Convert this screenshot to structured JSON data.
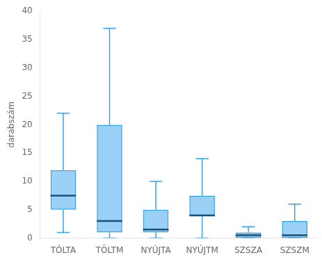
{
  "chart_data": {
    "type": "box",
    "categories": [
      "TÓLTA",
      "TÖLTM",
      "NYÚJTA",
      "NYÚJTM",
      "SZSZA",
      "SZSZM"
    ],
    "boxes": [
      {
        "whisker_low": 1,
        "q1": 5,
        "median": 7.5,
        "q3": 12,
        "whisker_high": 22
      },
      {
        "whisker_low": 0,
        "q1": 1,
        "median": 3,
        "q3": 20,
        "whisker_high": 37
      },
      {
        "whisker_low": 0,
        "q1": 1,
        "median": 1.5,
        "q3": 5,
        "whisker_high": 10
      },
      {
        "whisker_low": 0,
        "q1": 4,
        "median": 4,
        "q3": 7.5,
        "whisker_high": 14
      },
      {
        "whisker_low": 0,
        "q1": 0,
        "median": 0.5,
        "q3": 1,
        "whisker_high": 2
      },
      {
        "whisker_low": 0,
        "q1": 0,
        "median": 0.5,
        "q3": 3,
        "whisker_high": 6
      }
    ],
    "ylabel": "darabszám",
    "ylim": [
      0,
      40
    ],
    "yticks": [
      0,
      5,
      10,
      15,
      20,
      25,
      30,
      35,
      40
    ],
    "grid": false
  }
}
